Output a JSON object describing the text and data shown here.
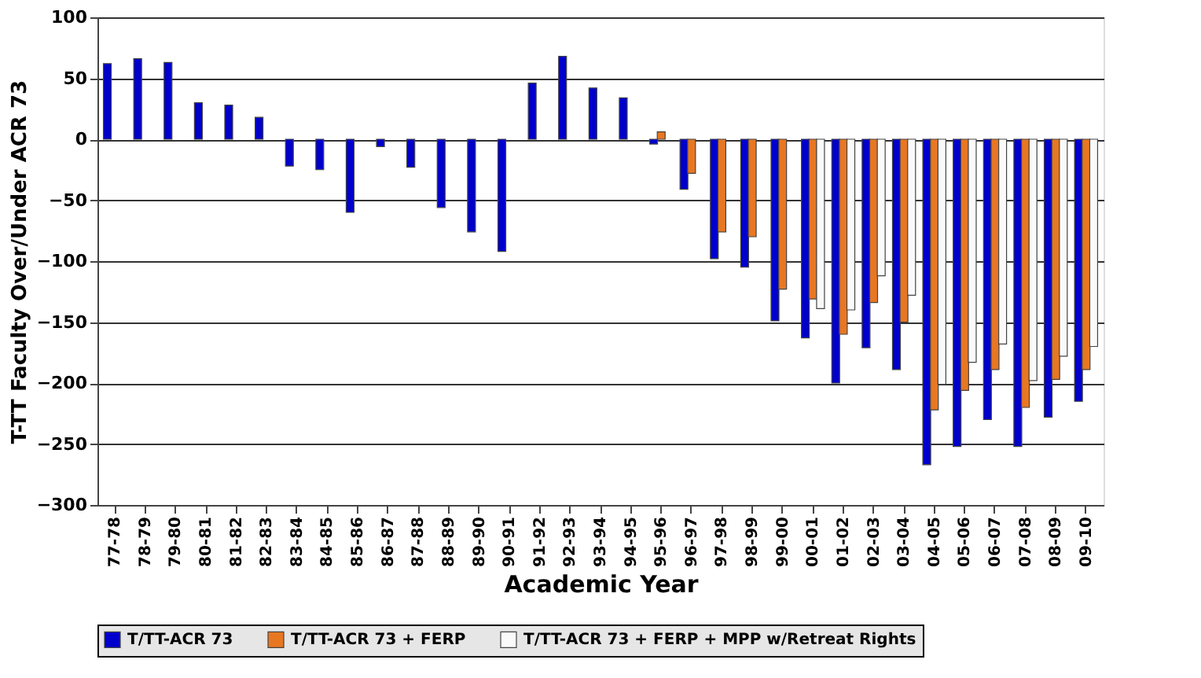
{
  "chart_data": {
    "type": "bar",
    "xlabel": "Academic Year",
    "ylabel": "T-TT Faculty Over/Under ACR 73",
    "categories": [
      "77-78",
      "78-79",
      "79-80",
      "80-81",
      "81-82",
      "82-83",
      "83-84",
      "84-85",
      "85-86",
      "86-87",
      "87-88",
      "88-89",
      "89-90",
      "90-91",
      "91-92",
      "92-93",
      "93-94",
      "94-95",
      "95-96",
      "96-97",
      "97-98",
      "98-99",
      "99-00",
      "00-01",
      "01-02",
      "02-03",
      "03-04",
      "04-05",
      "05-06",
      "06-07",
      "07-08",
      "08-09",
      "09-10"
    ],
    "series": [
      {
        "name": "T/TT-ACR 73",
        "color": "#0000cc",
        "values": [
          62,
          66,
          63,
          30,
          28,
          18,
          -22,
          -25,
          -60,
          -6,
          -23,
          -56,
          -76,
          -92,
          46,
          68,
          42,
          34,
          -4,
          -41,
          -98,
          -105,
          -149,
          -163,
          -200,
          -171,
          -189,
          -267,
          -252,
          -230,
          -252,
          -228,
          -215
        ]
      },
      {
        "name": "T/TT-ACR 73 + FERP",
        "color": "#e87722",
        "values": [
          null,
          null,
          null,
          null,
          null,
          null,
          null,
          null,
          null,
          null,
          null,
          null,
          null,
          null,
          null,
          null,
          null,
          null,
          6,
          -28,
          -76,
          -80,
          -123,
          -131,
          -160,
          -134,
          -150,
          -222,
          -206,
          -189,
          -220,
          -197,
          -189
        ]
      },
      {
        "name": "T/TT-ACR 73 + FERP + MPP w/Retreat Rights",
        "color": "#fafafa",
        "values": [
          null,
          null,
          null,
          null,
          null,
          null,
          null,
          null,
          null,
          null,
          null,
          null,
          null,
          null,
          null,
          null,
          null,
          null,
          null,
          null,
          null,
          null,
          null,
          -139,
          -140,
          -112,
          -128,
          -201,
          -183,
          -168,
          -198,
          -178,
          -170
        ]
      }
    ],
    "ylim": [
      -300,
      100
    ],
    "yticks": [
      -300,
      -250,
      -200,
      -150,
      -100,
      -50,
      0,
      50,
      100
    ],
    "grid": "y",
    "legend": "bottom"
  }
}
